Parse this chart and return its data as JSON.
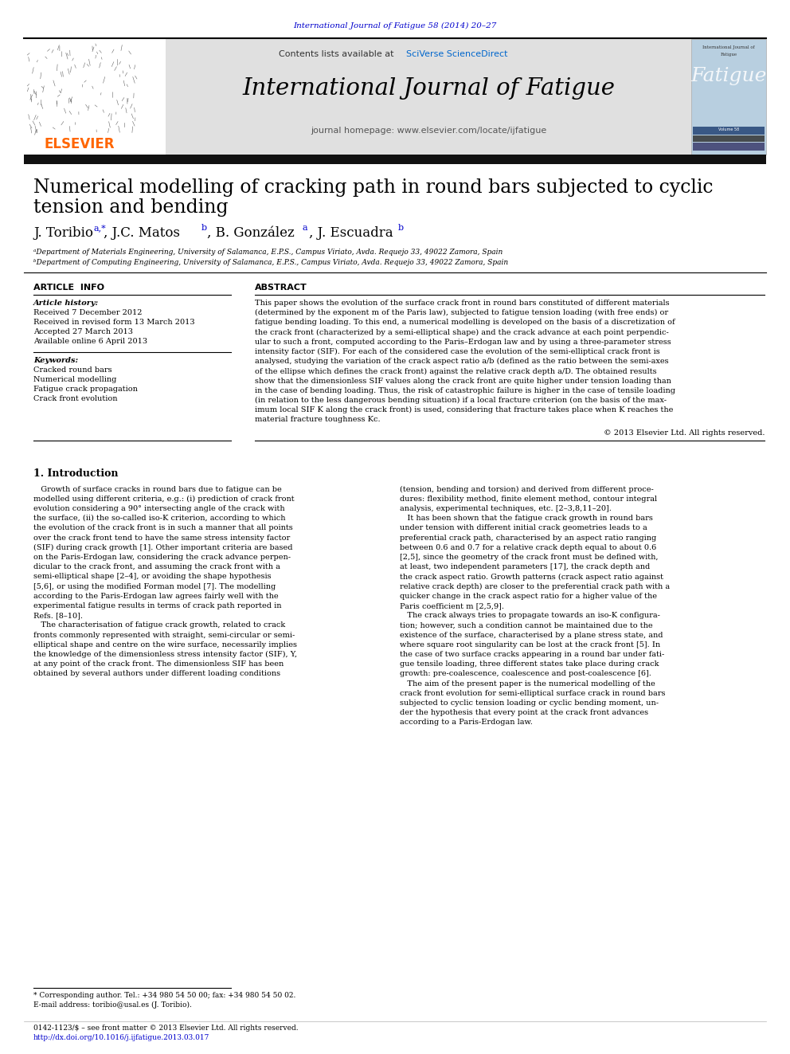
{
  "page_bg": "#ffffff",
  "top_citation": "International Journal of Fatigue 58 (2014) 20–27",
  "top_citation_color": "#0000cc",
  "journal_header_bg": "#e0e0e0",
  "journal_name": "International Journal of Fatigue",
  "contents_text": "Contents lists available at ",
  "sciverse_text": "SciVerse ScienceDirect",
  "sciverse_color": "#0066cc",
  "homepage_line": "journal homepage: www.elsevier.com/locate/ijfatigue",
  "elsevier_color": "#ff6600",
  "elsevier_text": "ELSEVIER",
  "dark_bar_color": "#1a1a1a",
  "paper_title_line1": "Numerical modelling of cracking path in round bars subjected to cyclic",
  "paper_title_line2": "tension and bending",
  "authors_plain": "J. Toribio",
  "authors_sup1": "a,*",
  "authors_mid1": ", J.C. Matos",
  "authors_sup2": "b",
  "authors_mid2": ", B. González",
  "authors_sup3": "a",
  "authors_mid3": ", J. Escuadra",
  "authors_sup4": "b",
  "sup_color": "#0000cc",
  "affil_a": "ᵃDepartment of Materials Engineering, University of Salamanca, E.P.S., Campus Viriato, Avda. Requejo 33, 49022 Zamora, Spain",
  "affil_b": "ᵇDepartment of Computing Engineering, University of Salamanca, E.P.S., Campus Viriato, Avda. Requejo 33, 49022 Zamora, Spain",
  "article_info_label": "ARTICLE  INFO",
  "abstract_label": "ABSTRACT",
  "article_history_label": "Article history:",
  "received1": "Received 7 December 2012",
  "received2": "Received in revised form 13 March 2013",
  "accepted": "Accepted 27 March 2013",
  "available": "Available online 6 April 2013",
  "keywords_label": "Keywords:",
  "keyword1": "Cracked round bars",
  "keyword2": "Numerical modelling",
  "keyword3": "Fatigue crack propagation",
  "keyword4": "Crack front evolution",
  "abstract_text": "This paper shows the evolution of the surface crack front in round bars constituted of different materials\n(determined by the exponent m of the Paris law), subjected to fatigue tension loading (with free ends) or\nfatigue bending loading. To this end, a numerical modelling is developed on the basis of a discretization of\nthe crack front (characterized by a semi-elliptical shape) and the crack advance at each point perpendic-\nular to such a front, computed according to the Paris–Erdogan law and by using a three-parameter stress\nintensity factor (SIF). For each of the considered case the evolution of the semi-elliptical crack front is\nanalysed, studying the variation of the crack aspect ratio a/b (defined as the ratio between the semi-axes\nof the ellipse which defines the crack front) against the relative crack depth a/D. The obtained results\nshow that the dimensionless SIF values along the crack front are quite higher under tension loading than\nin the case of bending loading. Thus, the risk of catastrophic failure is higher in the case of tensile loading\n(in relation to the less dangerous bending situation) if a local fracture criterion (on the basis of the max-\nimum local SIF K along the crack front) is used, considering that fracture takes place when K reaches the\nmaterial fracture toughness Kc.",
  "copyright": "© 2013 Elsevier Ltd. All rights reserved.",
  "intro_heading": "1. Introduction",
  "intro_col1_lines": [
    "   Growth of surface cracks in round bars due to fatigue can be",
    "modelled using different criteria, e.g.: (i) prediction of crack front",
    "evolution considering a 90° intersecting angle of the crack with",
    "the surface, (ii) the so-called iso-K criterion, according to which",
    "the evolution of the crack front is in such a manner that all points",
    "over the crack front tend to have the same stress intensity factor",
    "(SIF) during crack growth [1]. Other important criteria are based",
    "on the Paris-Erdogan law, considering the crack advance perpen-",
    "dicular to the crack front, and assuming the crack front with a",
    "semi-elliptical shape [2–4], or avoiding the shape hypothesis",
    "[5,6], or using the modified Forman model [7]. The modelling",
    "according to the Paris-Erdogan law agrees fairly well with the",
    "experimental fatigue results in terms of crack path reported in",
    "Refs. [8–10].",
    "   The characterisation of fatigue crack growth, related to crack",
    "fronts commonly represented with straight, semi-circular or semi-",
    "elliptical shape and centre on the wire surface, necessarily implies",
    "the knowledge of the dimensionless stress intensity factor (SIF), Y,",
    "at any point of the crack front. The dimensionless SIF has been",
    "obtained by several authors under different loading conditions"
  ],
  "intro_col2_lines": [
    "(tension, bending and torsion) and derived from different proce-",
    "dures: flexibility method, finite element method, contour integral",
    "analysis, experimental techniques, etc. [2–3,8,11–20].",
    "   It has been shown that the fatigue crack growth in round bars",
    "under tension with different initial crack geometries leads to a",
    "preferential crack path, characterised by an aspect ratio ranging",
    "between 0.6 and 0.7 for a relative crack depth equal to about 0.6",
    "[2,5], since the geometry of the crack front must be defined with,",
    "at least, two independent parameters [17], the crack depth and",
    "the crack aspect ratio. Growth patterns (crack aspect ratio against",
    "relative crack depth) are closer to the preferential crack path with a",
    "quicker change in the crack aspect ratio for a higher value of the",
    "Paris coefficient m [2,5,9].",
    "   The crack always tries to propagate towards an iso-K configura-",
    "tion; however, such a condition cannot be maintained due to the",
    "existence of the surface, characterised by a plane stress state, and",
    "where square root singularity can be lost at the crack front [5]. In",
    "the case of two surface cracks appearing in a round bar under fati-",
    "gue tensile loading, three different states take place during crack",
    "growth: pre-coalescence, coalescence and post-coalescence [6].",
    "   The aim of the present paper is the numerical modelling of the",
    "crack front evolution for semi-elliptical surface crack in round bars",
    "subjected to cyclic tension loading or cyclic bending moment, un-",
    "der the hypothesis that every point at the crack front advances",
    "according to a Paris-Erdogan law."
  ],
  "footnote_star": "* Corresponding author. Tel.: +34 980 54 50 00; fax: +34 980 54 50 02.",
  "footnote_email": "E-mail address: toribio@usal.es (J. Toribio).",
  "footer_issn": "0142-1123/$ – see front matter © 2013 Elsevier Ltd. All rights reserved.",
  "footer_doi": "http://dx.doi.org/10.1016/j.ijfatigue.2013.03.017",
  "footer_doi_color": "#0000cc"
}
